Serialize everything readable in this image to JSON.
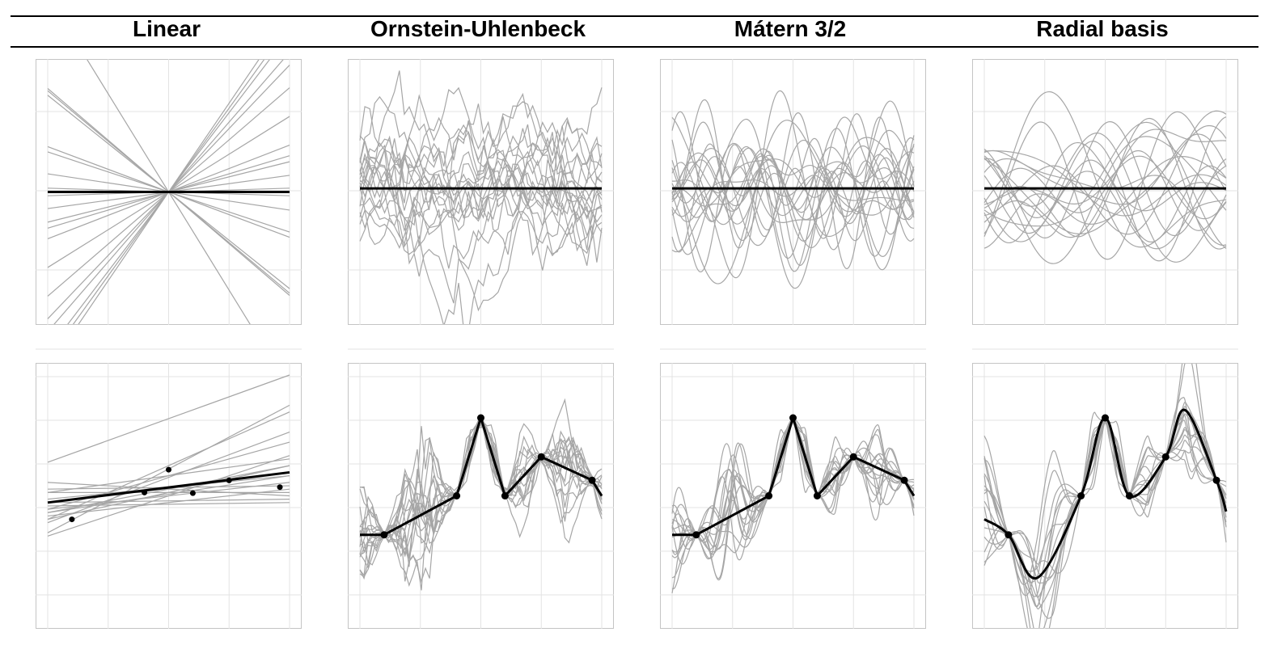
{
  "titles": [
    "Linear",
    "Ornstein-Uhlenbeck",
    "Mátern 3/2",
    "Radial basis"
  ],
  "colors": {
    "sample": "#a6a6a6",
    "mean": "#000000",
    "grid": "#e3e3e3",
    "border": "#c4c4c4"
  },
  "chart_data": [
    {
      "type": "line",
      "kernel": "linear",
      "row": "prior",
      "xlim": [
        0,
        1
      ],
      "ylim": [
        -1.6,
        1.6
      ],
      "grid": true,
      "mean": {
        "x": [
          0,
          1
        ],
        "y": [
          0,
          0
        ]
      },
      "samples": [
        {
          "x": [
            0,
            1
          ],
          "y": [
            1.37,
            -1.37
          ]
        },
        {
          "x": [
            0,
            1
          ],
          "y": [
            1.34,
            -1.34
          ]
        },
        {
          "x": [
            0,
            1
          ],
          "y": [
            1.28,
            -1.28
          ]
        },
        {
          "x": [
            0,
            1
          ],
          "y": [
            0.6,
            -0.6
          ]
        },
        {
          "x": [
            0,
            1
          ],
          "y": [
            0.53,
            -0.53
          ]
        },
        {
          "x": [
            0,
            1
          ],
          "y": [
            0.24,
            -0.24
          ]
        },
        {
          "x": [
            0,
            1
          ],
          "y": [
            0.05,
            -0.05
          ]
        },
        {
          "x": [
            0,
            1
          ],
          "y": [
            -0.05,
            0.05
          ]
        },
        {
          "x": [
            0,
            1
          ],
          "y": [
            -0.22,
            0.22
          ]
        },
        {
          "x": [
            0,
            1
          ],
          "y": [
            -0.4,
            0.4
          ]
        },
        {
          "x": [
            0,
            1
          ],
          "y": [
            -0.48,
            0.48
          ]
        },
        {
          "x": [
            0,
            1
          ],
          "y": [
            -0.62,
            0.62
          ]
        },
        {
          "x": [
            0,
            1
          ],
          "y": [
            -1.0,
            1.0
          ]
        },
        {
          "x": [
            0,
            1
          ],
          "y": [
            -1.38,
            1.38
          ]
        },
        {
          "x": [
            0,
            1
          ],
          "y": [
            -1.68,
            1.68
          ]
        },
        {
          "x": [
            0,
            1
          ],
          "y": [
            -1.85,
            1.85
          ]
        },
        {
          "x": [
            0,
            1
          ],
          "y": [
            -2.1,
            2.1
          ]
        },
        {
          "x": [
            0,
            1
          ],
          "y": [
            -2.22,
            2.22
          ]
        },
        {
          "x": [
            0,
            1
          ],
          "y": [
            -2.35,
            2.35
          ]
        },
        {
          "x": [
            0,
            1
          ],
          "y": [
            2.6,
            -2.6
          ]
        }
      ]
    },
    {
      "type": "line",
      "kernel": "ornstein-uhlenbeck",
      "row": "prior",
      "xlim": [
        0,
        1
      ],
      "ylim": [
        -1.75,
        1.65
      ],
      "grid": true,
      "mean": {
        "x": [
          0,
          1
        ],
        "y": [
          0,
          0
        ]
      },
      "samples_generated": {
        "count": 20,
        "length_scale": 0.2,
        "amplitude": 0.5,
        "grid_points": 50
      }
    },
    {
      "type": "line",
      "kernel": "matern-3/2",
      "row": "prior",
      "xlim": [
        0,
        1
      ],
      "ylim": [
        -1.75,
        1.65
      ],
      "grid": true,
      "mean": {
        "x": [
          0,
          1
        ],
        "y": [
          0,
          0
        ]
      },
      "samples_generated": {
        "count": 20,
        "length_scale": 0.15,
        "amplitude": 0.5,
        "grid_points": 80
      }
    },
    {
      "type": "line",
      "kernel": "radial-basis",
      "row": "prior",
      "xlim": [
        0,
        1
      ],
      "ylim": [
        -1.75,
        1.65
      ],
      "grid": true,
      "mean": {
        "x": [
          0,
          1
        ],
        "y": [
          0,
          0
        ]
      },
      "samples_generated": {
        "count": 20,
        "length_scale": 0.13,
        "amplitude": 0.5,
        "grid_points": 100
      }
    },
    {
      "type": "line",
      "kernel": "linear",
      "row": "posterior",
      "xlim": [
        0,
        1
      ],
      "ylim": [
        -1.8,
        1.8
      ],
      "grid": true,
      "observations": {
        "x": [
          0.1,
          0.5,
          0.6,
          0.4,
          0.75,
          0.96
        ],
        "y": [
          -0.35,
          0.39,
          0.04,
          0.05,
          0.23,
          0.13
        ]
      },
      "mean": {
        "x": [
          0,
          1
        ],
        "y": [
          -0.1,
          0.35
        ]
      },
      "samples": [
        {
          "x": [
            0,
            1
          ],
          "y": [
            0.5,
            1.8
          ]
        },
        {
          "x": [
            0,
            1
          ],
          "y": [
            -0.55,
            1.35
          ]
        },
        {
          "x": [
            0,
            1
          ],
          "y": [
            -0.2,
            0.8
          ]
        },
        {
          "x": [
            0,
            1
          ],
          "y": [
            0.05,
            0.55
          ]
        },
        {
          "x": [
            0,
            1
          ],
          "y": [
            -0.6,
            0.6
          ]
        },
        {
          "x": [
            0,
            1
          ],
          "y": [
            -0.35,
            0.45
          ]
        },
        {
          "x": [
            0,
            1
          ],
          "y": [
            0.1,
            0.15
          ]
        },
        {
          "x": [
            0,
            1
          ],
          "y": [
            -0.05,
            0.3
          ]
        },
        {
          "x": [
            0,
            1
          ],
          "y": [
            -0.3,
            0.1
          ]
        },
        {
          "x": [
            0,
            1
          ],
          "y": [
            0.2,
            0.0
          ]
        },
        {
          "x": [
            0,
            1
          ],
          "y": [
            -0.15,
            -0.1
          ]
        },
        {
          "x": [
            0,
            1
          ],
          "y": [
            -0.4,
            0.95
          ]
        },
        {
          "x": [
            0,
            1
          ],
          "y": [
            0.05,
            0.05
          ]
        },
        {
          "x": [
            0,
            1
          ],
          "y": [
            -0.1,
            -0.05
          ]
        },
        {
          "x": [
            0,
            1
          ],
          "y": [
            -0.25,
            0.3
          ]
        },
        {
          "x": [
            0,
            1
          ],
          "y": [
            -0.2,
            0.2
          ]
        },
        {
          "x": [
            0,
            1
          ],
          "y": [
            -0.35,
            1.25
          ]
        },
        {
          "x": [
            0,
            1
          ],
          "y": [
            -0.25,
            0.45
          ]
        }
      ]
    },
    {
      "type": "line",
      "kernel": "ornstein-uhlenbeck",
      "row": "posterior",
      "xlim": [
        0,
        1
      ],
      "ylim": [
        -1.55,
        1.55
      ],
      "grid": true,
      "observations": {
        "x": [
          0.1,
          0.4,
          0.5,
          0.6,
          0.75,
          0.96
        ],
        "y": [
          -0.5,
          0.0,
          1.0,
          0.0,
          0.5,
          0.2
        ]
      },
      "mean": {
        "x": [
          0,
          0.1,
          0.4,
          0.5,
          0.6,
          0.75,
          0.96,
          1.0
        ],
        "y": [
          -0.5,
          -0.5,
          0.0,
          1.0,
          0.0,
          0.5,
          0.2,
          0.0
        ]
      },
      "samples_generated": {
        "count": 18,
        "length_scale": 0.1,
        "amplitude": 0.55,
        "grid_points": 60
      }
    },
    {
      "type": "line",
      "kernel": "matern-3/2",
      "row": "posterior",
      "xlim": [
        0,
        1
      ],
      "ylim": [
        -1.55,
        1.55
      ],
      "grid": true,
      "observations": {
        "x": [
          0.1,
          0.4,
          0.5,
          0.6,
          0.75,
          0.96
        ],
        "y": [
          -0.5,
          0.0,
          1.0,
          0.0,
          0.5,
          0.2
        ]
      },
      "mean": {
        "x": [
          0,
          0.1,
          0.4,
          0.5,
          0.6,
          0.75,
          0.96,
          1.0
        ],
        "y": [
          -0.5,
          -0.5,
          0.0,
          1.0,
          0.0,
          0.5,
          0.2,
          0.0
        ]
      },
      "samples_generated": {
        "count": 16,
        "length_scale": 0.1,
        "amplitude": 0.5,
        "grid_points": 90
      }
    },
    {
      "type": "line",
      "kernel": "radial-basis",
      "row": "posterior",
      "xlim": [
        0,
        1
      ],
      "ylim": [
        -1.55,
        1.55
      ],
      "grid": true,
      "observations": {
        "x": [
          0.1,
          0.4,
          0.5,
          0.6,
          0.75,
          0.96
        ],
        "y": [
          -0.5,
          0.0,
          1.0,
          0.0,
          0.5,
          0.2
        ]
      },
      "mean": {
        "x": [
          0,
          0.1,
          0.22,
          0.4,
          0.5,
          0.6,
          0.75,
          0.83,
          0.96,
          1.0
        ],
        "y": [
          -0.3,
          -0.5,
          -1.05,
          0.0,
          1.0,
          0.0,
          0.5,
          1.1,
          0.2,
          -0.2
        ]
      },
      "samples_generated": {
        "count": 16,
        "length_scale": 0.08,
        "amplitude": 0.5,
        "grid_points": 100
      }
    }
  ]
}
